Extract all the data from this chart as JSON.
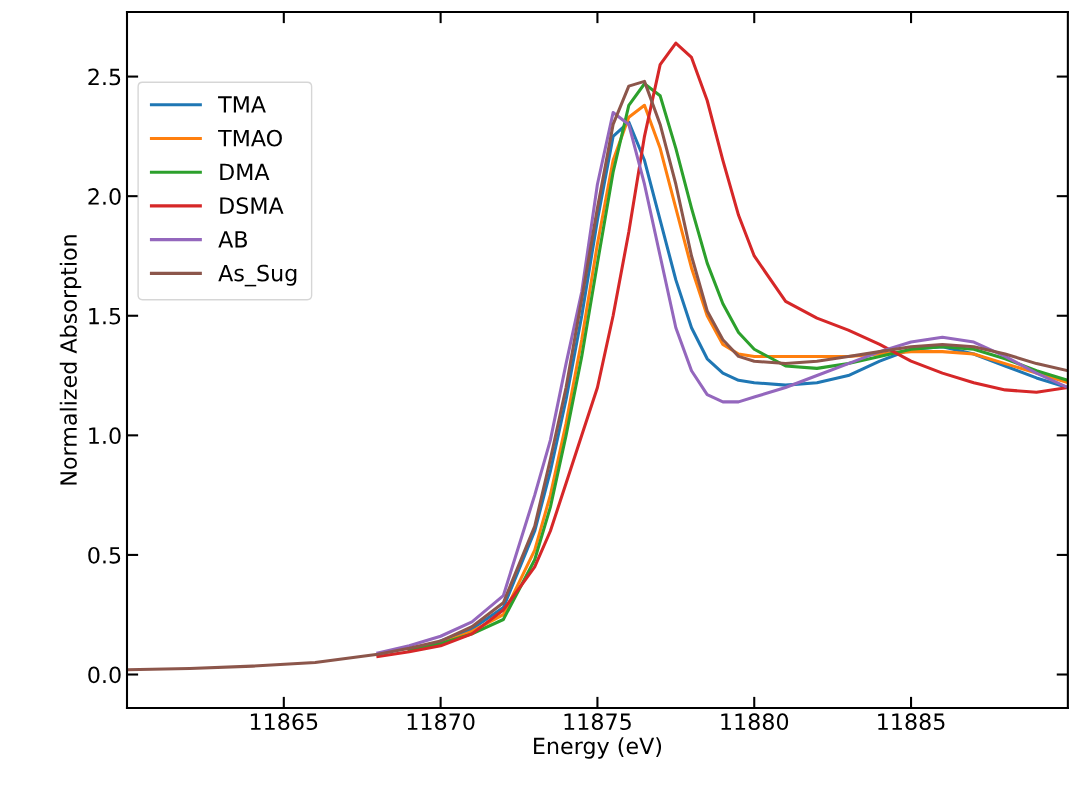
{
  "chart_data": {
    "type": "line",
    "xlabel": "Energy (eV)",
    "ylabel": "Normalized Absorption",
    "x": [
      11860,
      11862,
      11864,
      11866,
      11868,
      11869,
      11870,
      11871,
      11872,
      11873,
      11873.5,
      11874,
      11874.5,
      11875,
      11875.5,
      11876,
      11876.5,
      11877,
      11877.5,
      11878,
      11878.5,
      11879,
      11879.5,
      11880,
      11881,
      11882,
      11883,
      11884,
      11885,
      11886,
      11887,
      11888,
      11889,
      11890
    ],
    "series": [
      {
        "name": "TMA",
        "color": "#1f77b4",
        "values": [
          null,
          null,
          null,
          null,
          null,
          null,
          0.14,
          0.19,
          0.28,
          0.6,
          0.85,
          1.15,
          1.5,
          1.9,
          2.25,
          2.31,
          2.15,
          1.9,
          1.65,
          1.45,
          1.32,
          1.26,
          1.23,
          1.22,
          1.21,
          1.22,
          1.25,
          1.31,
          1.36,
          1.37,
          1.34,
          1.29,
          1.24,
          1.2
        ]
      },
      {
        "name": "TMAO",
        "color": "#ff7f0e",
        "values": [
          null,
          null,
          null,
          null,
          null,
          0.1,
          0.13,
          0.18,
          0.25,
          0.52,
          0.75,
          1.05,
          1.4,
          1.8,
          2.15,
          2.33,
          2.38,
          2.2,
          1.95,
          1.7,
          1.5,
          1.38,
          1.34,
          1.33,
          1.33,
          1.33,
          1.33,
          1.34,
          1.35,
          1.35,
          1.34,
          1.3,
          1.26,
          1.22
        ]
      },
      {
        "name": "DMA",
        "color": "#2ca02c",
        "values": [
          null,
          null,
          null,
          null,
          null,
          0.1,
          0.13,
          0.17,
          0.23,
          0.48,
          0.7,
          1.0,
          1.33,
          1.72,
          2.1,
          2.38,
          2.47,
          2.42,
          2.2,
          1.95,
          1.72,
          1.55,
          1.43,
          1.36,
          1.29,
          1.28,
          1.3,
          1.33,
          1.36,
          1.37,
          1.36,
          1.32,
          1.27,
          1.23
        ]
      },
      {
        "name": "DSMA",
        "color": "#d62728",
        "values": [
          null,
          null,
          null,
          null,
          0.075,
          0.095,
          0.12,
          0.17,
          0.27,
          0.45,
          0.6,
          0.8,
          1.0,
          1.2,
          1.5,
          1.85,
          2.25,
          2.55,
          2.64,
          2.58,
          2.4,
          2.15,
          1.92,
          1.75,
          1.56,
          1.49,
          1.44,
          1.38,
          1.31,
          1.26,
          1.22,
          1.19,
          1.18,
          1.2
        ]
      },
      {
        "name": "AB",
        "color": "#9467bd",
        "values": [
          null,
          null,
          null,
          null,
          0.09,
          0.12,
          0.16,
          0.22,
          0.33,
          0.75,
          0.98,
          1.3,
          1.6,
          2.05,
          2.35,
          2.3,
          2.05,
          1.75,
          1.45,
          1.27,
          1.17,
          1.14,
          1.14,
          1.16,
          1.2,
          1.25,
          1.3,
          1.35,
          1.39,
          1.41,
          1.39,
          1.33,
          1.26,
          1.2
        ]
      },
      {
        "name": "As_Sug",
        "color": "#8c564b",
        "values": [
          0.02,
          0.025,
          0.035,
          0.05,
          0.085,
          0.11,
          0.14,
          0.2,
          0.3,
          0.62,
          0.9,
          1.2,
          1.57,
          1.95,
          2.3,
          2.46,
          2.48,
          2.3,
          2.05,
          1.75,
          1.52,
          1.4,
          1.33,
          1.31,
          1.3,
          1.31,
          1.33,
          1.35,
          1.37,
          1.38,
          1.37,
          1.34,
          1.3,
          1.27
        ]
      }
    ],
    "xlim": [
      11860,
      11890
    ],
    "ylim": [
      -0.14,
      2.77
    ],
    "xticks": [
      11865,
      11870,
      11875,
      11880,
      11885
    ],
    "yticks": [
      {
        "value": 0,
        "label": "0.0"
      },
      0.5,
      {
        "value": 1,
        "label": "1.0"
      },
      1.5,
      {
        "value": 2,
        "label": "2.0"
      },
      2.5
    ],
    "grid": false,
    "legend": "top left",
    "marker": "none",
    "line_style": "solid"
  }
}
